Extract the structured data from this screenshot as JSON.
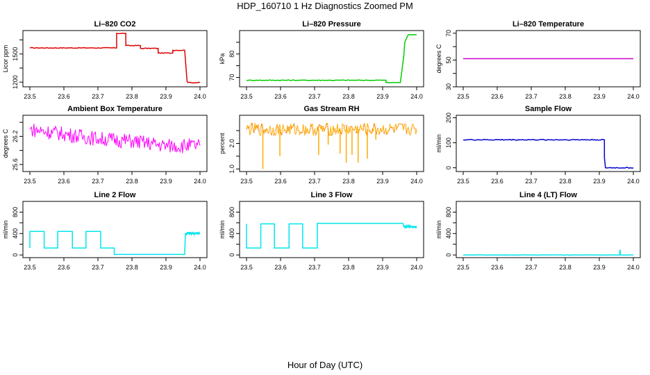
{
  "figure": {
    "title": "HDP_160710  1 Hz Diagnostics Zoomed PM",
    "xlabel": "Hour of Day (UTC)"
  },
  "chart_data": [
    {
      "type": "line",
      "title": "Li–820 CO2",
      "ylabel": "Licor ppm",
      "color": "#dd0000",
      "xlim": [
        23.5,
        24.0
      ],
      "ylim": [
        1150,
        1750
      ],
      "xticks": [
        "23.5",
        "23.6",
        "23.7",
        "23.8",
        "23.9",
        "24.0"
      ],
      "yticks": [
        {
          "v": 1200,
          "l": "1200"
        },
        {
          "v": 1350,
          "l": ""
        },
        {
          "v": 1500,
          "l": "1500"
        },
        {
          "v": 1650,
          "l": ""
        }
      ],
      "noise": 4,
      "x": [
        23.5,
        23.755,
        23.755,
        23.782,
        23.782,
        23.825,
        23.825,
        23.877,
        23.877,
        23.92,
        23.92,
        23.955,
        23.962,
        23.965,
        24.0
      ],
      "y": [
        1565,
        1565,
        1720,
        1720,
        1590,
        1590,
        1560,
        1560,
        1510,
        1510,
        1540,
        1540,
        1210,
        1195,
        1195
      ]
    },
    {
      "type": "line",
      "title": "Li–820 Pressure",
      "ylabel": "kPa",
      "color": "#00cc00",
      "xlim": [
        23.5,
        24.0
      ],
      "ylim": [
        66,
        90
      ],
      "xticks": [
        "23.5",
        "23.6",
        "23.7",
        "23.8",
        "23.9",
        "24.0"
      ],
      "yticks": [
        {
          "v": 70,
          "l": "70"
        },
        {
          "v": 75,
          "l": ""
        },
        {
          "v": 80,
          "l": "80"
        },
        {
          "v": 85,
          "l": ""
        }
      ],
      "noise": 0.15,
      "x": [
        23.5,
        23.91,
        23.91,
        23.952,
        23.962,
        23.965,
        23.975,
        24.0
      ],
      "y": [
        68.8,
        68.8,
        67.8,
        67.8,
        79,
        85,
        88.2,
        88.2
      ]
    },
    {
      "type": "line",
      "title": "Li–820 Temperature",
      "ylabel": "degrees C",
      "color": "#cc00cc",
      "xlim": [
        23.5,
        24.0
      ],
      "ylim": [
        30,
        72
      ],
      "xticks": [
        "23.5",
        "23.6",
        "23.7",
        "23.8",
        "23.9",
        "24.0"
      ],
      "yticks": [
        {
          "v": 30,
          "l": "30"
        },
        {
          "v": 40,
          "l": ""
        },
        {
          "v": 50,
          "l": "50"
        },
        {
          "v": 60,
          "l": ""
        },
        {
          "v": 70,
          "l": "70"
        }
      ],
      "noise": 0,
      "x": [
        23.5,
        24.0
      ],
      "y": [
        51,
        51
      ]
    },
    {
      "type": "line",
      "title": "Ambient Box Temperature",
      "ylabel": "degrees C",
      "color": "#ff00ff",
      "xlim": [
        23.5,
        24.0
      ],
      "ylim": [
        25.45,
        26.65
      ],
      "xticks": [
        "23.5",
        "23.6",
        "23.7",
        "23.8",
        "23.9",
        "24.0"
      ],
      "yticks": [
        {
          "v": 25.6,
          "l": "25.6"
        },
        {
          "v": 25.9,
          "l": ""
        },
        {
          "v": 26.2,
          "l": "26.2"
        },
        {
          "v": 26.5,
          "l": ""
        }
      ],
      "noise": 0.16,
      "dense": true,
      "x": [
        23.5,
        23.6,
        23.7,
        23.8,
        23.9,
        24.0
      ],
      "y": [
        26.35,
        26.25,
        26.15,
        26.1,
        26.0,
        26.0
      ]
    },
    {
      "type": "line",
      "title": "Gas Stream RH",
      "ylabel": "percent",
      "color": "#ffaa00",
      "color2": "#cc2200",
      "xlim": [
        23.5,
        24.0
      ],
      "ylim": [
        0.9,
        3.1
      ],
      "xticks": [
        "23.5",
        "23.6",
        "23.7",
        "23.8",
        "23.9",
        "24.0"
      ],
      "yticks": [
        {
          "v": 1.0,
          "l": "1.0"
        },
        {
          "v": 1.5,
          "l": ""
        },
        {
          "v": 2.0,
          "l": "2.0"
        },
        {
          "v": 2.5,
          "l": ""
        }
      ],
      "noise": 0.25,
      "dense": true,
      "x": [
        23.5,
        24.0
      ],
      "y": [
        2.55,
        2.55
      ],
      "spikes": [
        [
          23.548,
          1.0
        ],
        [
          23.598,
          1.5
        ],
        [
          23.712,
          1.55
        ],
        [
          23.74,
          1.95
        ],
        [
          23.775,
          1.6
        ],
        [
          23.793,
          1.25
        ],
        [
          23.81,
          1.55
        ],
        [
          23.828,
          1.25
        ],
        [
          23.855,
          1.4
        ],
        [
          23.88,
          2.15
        ]
      ]
    },
    {
      "type": "line",
      "title": "Sample Flow",
      "ylabel": "ml/min",
      "color": "#0000cc",
      "xlim": [
        23.5,
        24.0
      ],
      "ylim": [
        -15,
        210
      ],
      "xticks": [
        "23.5",
        "23.6",
        "23.7",
        "23.8",
        "23.9",
        "24.0"
      ],
      "yticks": [
        {
          "v": 0,
          "l": "0"
        },
        {
          "v": 100,
          "l": "100"
        },
        {
          "v": 200,
          "l": "200"
        }
      ],
      "noise": 2,
      "x": [
        23.5,
        23.915,
        23.915,
        23.918,
        24.0
      ],
      "y": [
        112,
        112,
        40,
        0,
        0
      ]
    },
    {
      "type": "line",
      "title": "Line 2 Flow",
      "ylabel": "ml/min",
      "color": "#00e5ee",
      "xlim": [
        23.5,
        24.0
      ],
      "ylim": [
        -50,
        1000
      ],
      "xticks": [
        "23.5",
        "23.6",
        "23.7",
        "23.8",
        "23.9",
        "24.0"
      ],
      "yticks": [
        {
          "v": 0,
          "l": "0"
        },
        {
          "v": 200,
          "l": ""
        },
        {
          "v": 400,
          "l": "400"
        },
        {
          "v": 600,
          "l": ""
        },
        {
          "v": 800,
          "l": "800"
        }
      ],
      "noise": 0,
      "x": [
        23.5,
        23.5,
        23.542,
        23.542,
        23.582,
        23.582,
        23.625,
        23.625,
        23.665,
        23.665,
        23.708,
        23.708,
        23.748,
        23.748,
        23.955,
        23.957,
        24.0
      ],
      "y": [
        130,
        440,
        440,
        130,
        130,
        440,
        440,
        130,
        130,
        440,
        440,
        130,
        130,
        10,
        10,
        400,
        400
      ],
      "tail_noise": [
        23.957,
        24.0,
        25
      ]
    },
    {
      "type": "line",
      "title": "Line 3 Flow",
      "ylabel": "ml/min",
      "color": "#00e5ee",
      "xlim": [
        23.5,
        24.0
      ],
      "ylim": [
        -50,
        1000
      ],
      "xticks": [
        "23.5",
        "23.6",
        "23.7",
        "23.8",
        "23.9",
        "24.0"
      ],
      "yticks": [
        {
          "v": 0,
          "l": "0"
        },
        {
          "v": 200,
          "l": ""
        },
        {
          "v": 400,
          "l": "400"
        },
        {
          "v": 600,
          "l": ""
        },
        {
          "v": 800,
          "l": "800"
        }
      ],
      "noise": 0,
      "x": [
        23.5,
        23.5,
        23.5,
        23.542,
        23.542,
        23.582,
        23.582,
        23.625,
        23.625,
        23.665,
        23.665,
        23.708,
        23.708,
        23.96,
        23.962,
        24.0
      ],
      "y": [
        580,
        130,
        130,
        130,
        580,
        580,
        130,
        130,
        580,
        580,
        130,
        130,
        590,
        590,
        530,
        530
      ],
      "tail_noise": [
        23.962,
        24.0,
        25
      ]
    },
    {
      "type": "line",
      "title": "Line 4 (LT) Flow",
      "ylabel": "ml/min",
      "color": "#00e5ee",
      "xlim": [
        23.5,
        24.0
      ],
      "ylim": [
        -50,
        1000
      ],
      "xticks": [
        "23.5",
        "23.6",
        "23.7",
        "23.8",
        "23.9",
        "24.0"
      ],
      "yticks": [
        {
          "v": 0,
          "l": "0"
        },
        {
          "v": 200,
          "l": ""
        },
        {
          "v": 400,
          "l": "400"
        },
        {
          "v": 600,
          "l": ""
        },
        {
          "v": 800,
          "l": "800"
        }
      ],
      "noise": 3,
      "x": [
        23.5,
        23.96,
        23.961,
        23.962,
        24.0
      ],
      "y": [
        0,
        0,
        100,
        0,
        0
      ]
    }
  ]
}
